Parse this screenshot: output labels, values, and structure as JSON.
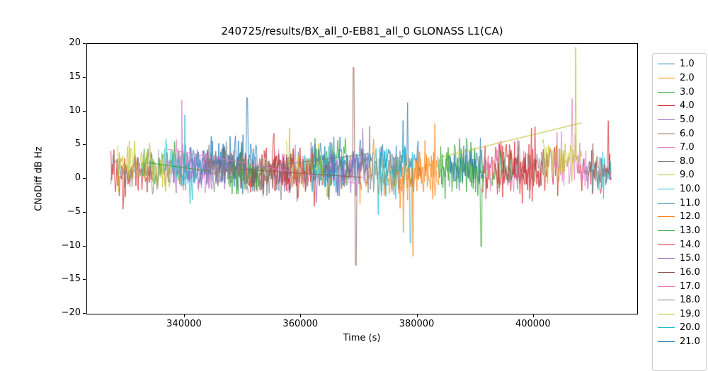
{
  "chart_data": {
    "type": "line",
    "title": "240725/results/BX_all_0-EB81_all_0 GLONASS L1(CA)",
    "xlabel": "Time (s)",
    "ylabel": "CNoDiff dB Hz",
    "xlim": [
      323200,
      417800
    ],
    "ylim": [
      -20,
      20
    ],
    "grid": false,
    "legend_position": "right-outside",
    "noise_seed": 77,
    "xticks": [
      {
        "value": 340000,
        "label": "340000"
      },
      {
        "value": 360000,
        "label": "360000"
      },
      {
        "value": 380000,
        "label": "380000"
      },
      {
        "value": 400000,
        "label": "400000"
      }
    ],
    "yticks": [
      {
        "value": -20,
        "label": "−20"
      },
      {
        "value": -15,
        "label": "−15"
      },
      {
        "value": -10,
        "label": "−10"
      },
      {
        "value": -5,
        "label": "−5"
      },
      {
        "value": 0,
        "label": "0"
      },
      {
        "value": 5,
        "label": "5"
      },
      {
        "value": 10,
        "label": "10"
      },
      {
        "value": 15,
        "label": "15"
      },
      {
        "value": 20,
        "label": "20"
      }
    ],
    "series": [
      {
        "name": "1.0",
        "color": "#1f77b4",
        "segments": [
          {
            "range": [
              340000,
              352500
            ],
            "mean": 2.2,
            "amp": 6.0
          },
          {
            "range": [
              373500,
              380500
            ],
            "mean": 2.0,
            "amp": 6.0
          }
        ],
        "spikes": [
          [
            350700,
            12.0
          ],
          [
            378300,
            11.3
          ]
        ]
      },
      {
        "name": "2.0",
        "color": "#ff7f0e",
        "segments": [
          {
            "range": [
              370000,
              384000
            ],
            "mean": 1.0,
            "amp": 6.5
          }
        ],
        "spikes": [
          [
            379200,
            -11.5
          ],
          [
            383000,
            8.2
          ]
        ]
      },
      {
        "name": "3.0",
        "color": "#2ca02c",
        "segments": [
          {
            "range": [
              332500,
              340500
            ],
            "mean": 2.0,
            "amp": 5.5
          },
          {
            "range": [
              361500,
              368500
            ],
            "mean": 2.0,
            "amp": 6.0
          },
          {
            "range": [
              383500,
              392000
            ],
            "mean": 1.5,
            "amp": 6.5
          }
        ],
        "spikes": [
          [
            391000,
            -10.0
          ]
        ]
      },
      {
        "name": "4.0",
        "color": "#d62728",
        "segments": [
          {
            "range": [
              327300,
              334500
            ],
            "mean": 1.2,
            "amp": 5.5
          },
          {
            "range": [
              349500,
              356500
            ],
            "mean": 1.5,
            "amp": 6.0
          },
          {
            "range": [
              391000,
              404500
            ],
            "mean": 1.2,
            "amp": 6.0
          },
          {
            "range": [
              407500,
              413400
            ],
            "mean": 1.0,
            "amp": 6.0
          }
        ],
        "spikes": [
          [
            412800,
            8.6
          ]
        ]
      },
      {
        "name": "5.0",
        "color": "#9467bd",
        "segments": [
          {
            "range": [
              337500,
              345000
            ],
            "mean": 1.5,
            "amp": 5.5
          },
          {
            "range": [
              356000,
              363500
            ],
            "mean": 1.0,
            "amp": 5.5
          }
        ]
      },
      {
        "name": "6.0",
        "color": "#8c564b",
        "segments": [
          {
            "range": [
              343500,
              350500
            ],
            "mean": 1.0,
            "amp": 5.0
          },
          {
            "range": [
              363500,
              370500
            ],
            "mean": 1.3,
            "amp": 5.5
          }
        ],
        "spikes": [
          [
            369000,
            16.5
          ],
          [
            369400,
            -12.8
          ]
        ]
      },
      {
        "name": "7.0",
        "color": "#e377c2",
        "segments": [
          {
            "range": [
              336500,
              344500
            ],
            "mean": 1.5,
            "amp": 6.0
          },
          {
            "range": [
              355500,
              362000
            ],
            "mean": 1.5,
            "amp": 5.5
          },
          {
            "range": [
              391500,
              398500
            ],
            "mean": 2.0,
            "amp": 6.0
          }
        ],
        "spikes": [
          [
            339500,
            11.7
          ]
        ]
      },
      {
        "name": "8.0",
        "color": "#7f7f7f",
        "segments": [
          {
            "range": [
              327300,
              335500
            ],
            "mean": 1.5,
            "amp": 5.0
          },
          {
            "range": [
              351500,
              360000
            ],
            "mean": 1.0,
            "amp": 5.5
          },
          {
            "range": [
              395500,
              402500
            ],
            "mean": 2.0,
            "amp": 5.5
          }
        ]
      },
      {
        "name": "9.0",
        "color": "#bcbd22",
        "segments": [
          {
            "range": [
              328500,
              337500
            ],
            "mean": 2.0,
            "amp": 5.5
          },
          {
            "range": [
              357500,
              364500
            ],
            "mean": 1.5,
            "amp": 5.0
          }
        ]
      },
      {
        "name": "10.0",
        "color": "#17becf",
        "segments": [
          {
            "range": [
              336500,
              343500
            ],
            "mean": 1.0,
            "amp": 5.5
          },
          {
            "range": [
              360500,
              367500
            ],
            "mean": 1.5,
            "amp": 5.5
          },
          {
            "range": [
              408500,
              413400
            ],
            "mean": 1.0,
            "amp": 5.5
          }
        ]
      },
      {
        "name": "11.0",
        "color": "#1f77b4",
        "segments": [
          {
            "range": [
              344500,
              352500
            ],
            "mean": 2.5,
            "amp": 6.0
          },
          {
            "range": [
              362000,
              372500
            ],
            "mean": 2.0,
            "amp": 6.0
          }
        ]
      },
      {
        "name": "12.0",
        "color": "#ff7f0e",
        "segments": [
          {
            "range": [
              375500,
              383500
            ],
            "mean": 0.5,
            "amp": 6.0
          }
        ],
        "spikes": [
          [
            377600,
            -8.0
          ]
        ]
      },
      {
        "name": "13.0",
        "color": "#2ca02c",
        "segments": [
          {
            "range": [
              347500,
              354000
            ],
            "mean": 1.0,
            "amp": 5.5
          },
          {
            "range": [
              384000,
              391500
            ],
            "mean": 1.5,
            "amp": 6.0
          },
          {
            "range": [
              392500,
              396500
            ],
            "mean": 1.5,
            "amp": 5.5
          }
        ]
      },
      {
        "name": "14.0",
        "color": "#d62728",
        "segments": [
          {
            "range": [
              354500,
              362500
            ],
            "mean": 1.5,
            "amp": 6.0
          },
          {
            "range": [
              393500,
              401500
            ],
            "mean": 1.0,
            "amp": 6.0
          }
        ]
      },
      {
        "name": "15.0",
        "color": "#9467bd",
        "segments": [
          {
            "range": [
              340500,
              348000
            ],
            "mean": 1.0,
            "amp": 5.0
          },
          {
            "range": [
              364500,
              371500
            ],
            "mean": 1.5,
            "amp": 5.5
          }
        ]
      },
      {
        "name": "16.0",
        "color": "#8c564b",
        "segments": [
          {
            "range": [
              351500,
              358500
            ],
            "mean": 0.5,
            "amp": 5.0
          },
          {
            "range": [
              409000,
              413400
            ],
            "mean": 1.0,
            "amp": 5.0
          }
        ]
      },
      {
        "name": "17.0",
        "color": "#e377c2",
        "segments": [
          {
            "range": [
              403500,
              409500
            ],
            "mean": 2.0,
            "amp": 6.0
          }
        ],
        "spikes": [
          [
            406600,
            11.9
          ]
        ]
      },
      {
        "name": "18.0",
        "color": "#7f7f7f",
        "segments": [
          {
            "range": [
              343500,
              351000
            ],
            "mean": 1.5,
            "amp": 5.0
          },
          {
            "range": [
              370500,
              377500
            ],
            "mean": 1.5,
            "amp": 5.5
          }
        ]
      },
      {
        "name": "19.0",
        "color": "#bcbd22",
        "segments": [
          {
            "range": [
              401500,
              408500
            ],
            "mean": 3.0,
            "amp": 5.5
          }
        ],
        "spikes": [
          [
            407200,
            19.5
          ]
        ]
      },
      {
        "name": "20.0",
        "color": "#17becf",
        "segments": [
          {
            "range": [
              372500,
              379500
            ],
            "mean": 1.5,
            "amp": 6.0
          }
        ],
        "spikes": [
          [
            378800,
            -9.5
          ]
        ]
      },
      {
        "name": "21.0",
        "color": "#1f77b4",
        "segments": [
          {
            "range": [
              385500,
              391500
            ],
            "mean": 1.5,
            "amp": 6.0
          }
        ]
      }
    ],
    "trend_lines": [
      {
        "color": "#bcbd22",
        "points": [
          [
            384000,
            3.2
          ],
          [
            408300,
            8.3
          ]
        ]
      },
      {
        "color": "#e377c2",
        "points": [
          [
            337000,
            4.4
          ],
          [
            369500,
            -0.7
          ]
        ]
      },
      {
        "color": "#7f7f7f",
        "points": [
          [
            344500,
            0.8
          ],
          [
            371500,
            3.7
          ]
        ]
      },
      {
        "color": "#8c564b",
        "points": [
          [
            350000,
            1.4
          ],
          [
            370500,
            0.2
          ]
        ]
      },
      {
        "color": "#2ca02c",
        "points": [
          [
            333500,
            2.4
          ],
          [
            344500,
            1.1
          ]
        ]
      }
    ]
  }
}
